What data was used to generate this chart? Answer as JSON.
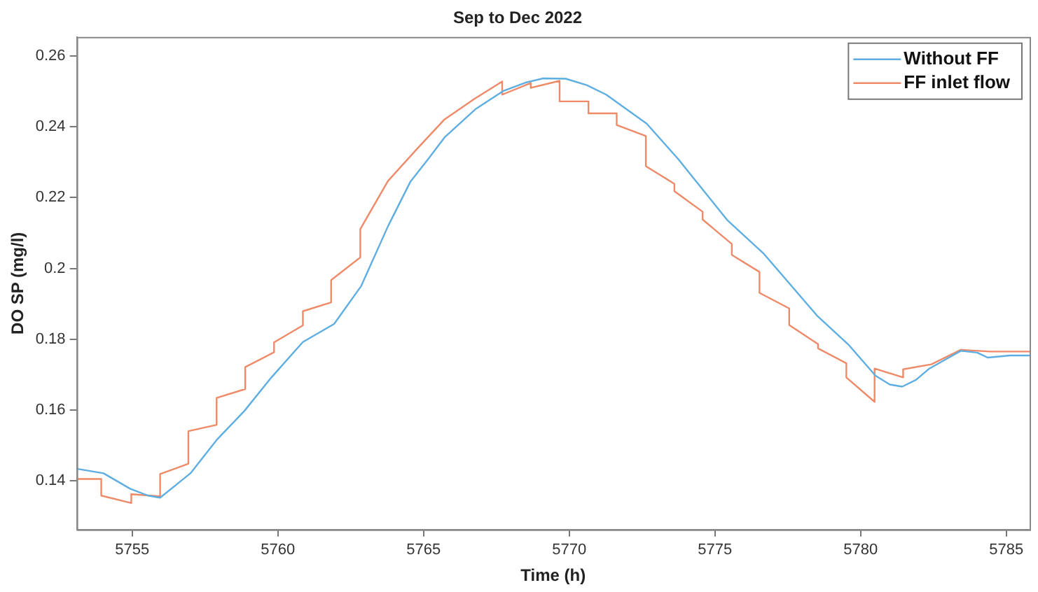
{
  "chart_data": {
    "type": "line",
    "title": "Sep to Dec 2022",
    "xlabel": "Time (h)",
    "ylabel": "DO SP (mg/l)",
    "xlim": [
      5753.1,
      5785.8
    ],
    "xticks": [
      5755,
      5760,
      5765,
      5770,
      5775,
      5780,
      5785
    ],
    "ylim": [
      0.1262,
      0.2654
    ],
    "yticks": [
      0.14,
      0.16,
      0.18,
      0.2,
      0.22,
      0.24,
      0.26
    ],
    "grid": false,
    "legend": "top right",
    "marker": "none",
    "line_style": "solid",
    "series": [
      {
        "name": "Without FF",
        "color": "#5eaee2",
        "x": [
          5753.1,
          5754.02,
          5754.94,
          5755.55,
          5755.96,
          5757.0,
          5757.93,
          5758.85,
          5759.78,
          5760.86,
          5761.93,
          5762.86,
          5763.78,
          5764.55,
          5765.17,
          5765.72,
          5766.8,
          5767.73,
          5768.5,
          5769.11,
          5769.88,
          5770.6,
          5771.27,
          5772.66,
          5773.74,
          5774.97,
          5775.42,
          5776.66,
          5777.58,
          5778.5,
          5779.58,
          5780.51,
          5781.0,
          5781.43,
          5781.9,
          5782.36,
          5783.44,
          5784.0,
          5784.36,
          5785.13,
          5785.8
        ],
        "values": [
          0.1434,
          0.1421,
          0.1377,
          0.1358,
          0.1352,
          0.1421,
          0.1518,
          0.1597,
          0.1692,
          0.1792,
          0.1843,
          0.195,
          0.2119,
          0.2245,
          0.231,
          0.237,
          0.2451,
          0.2501,
          0.2525,
          0.2537,
          0.2536,
          0.2518,
          0.2491,
          0.2409,
          0.2309,
          0.2183,
          0.2137,
          0.2043,
          0.1955,
          0.1867,
          0.1785,
          0.1697,
          0.1672,
          0.1666,
          0.1685,
          0.1717,
          0.1767,
          0.1762,
          0.1748,
          0.1754,
          0.1754
        ]
      },
      {
        "name": "FF inlet flow",
        "color": "#ee8a68",
        "x": [
          5753.1,
          5753.94,
          5753.94,
          5754.97,
          5754.97,
          5755.96,
          5755.96,
          5756.93,
          5756.93,
          5757.9,
          5757.9,
          5758.88,
          5758.88,
          5759.87,
          5759.87,
          5760.86,
          5760.86,
          5761.83,
          5761.83,
          5762.83,
          5762.83,
          5763.78,
          5764.78,
          5765.72,
          5766.73,
          5767.7,
          5767.7,
          5768.68,
          5768.68,
          5769.67,
          5769.67,
          5770.66,
          5770.66,
          5771.63,
          5771.63,
          5772.63,
          5772.63,
          5773.61,
          5773.61,
          5774.58,
          5774.58,
          5775.58,
          5775.58,
          5776.53,
          5776.53,
          5777.55,
          5777.55,
          5778.54,
          5778.54,
          5779.51,
          5779.51,
          5780.48,
          5780.48,
          5781.46,
          5781.46,
          5782.43,
          5783.44,
          5784.44,
          5785.8
        ],
        "values": [
          0.1405,
          0.1405,
          0.1358,
          0.1337,
          0.1362,
          0.1356,
          0.1419,
          0.1448,
          0.154,
          0.1558,
          0.1634,
          0.1659,
          0.1721,
          0.1763,
          0.1791,
          0.1839,
          0.1879,
          0.1904,
          0.1967,
          0.2031,
          0.2111,
          0.2247,
          0.2338,
          0.2421,
          0.2478,
          0.2528,
          0.2491,
          0.2524,
          0.251,
          0.253,
          0.2472,
          0.2472,
          0.2438,
          0.2438,
          0.2405,
          0.2374,
          0.2289,
          0.2239,
          0.2218,
          0.216,
          0.2138,
          0.2069,
          0.2038,
          0.199,
          0.1931,
          0.1887,
          0.184,
          0.1786,
          0.1774,
          0.1732,
          0.1692,
          0.1623,
          0.1717,
          0.1692,
          0.1715,
          0.1729,
          0.177,
          0.1765,
          0.1765
        ]
      }
    ]
  }
}
